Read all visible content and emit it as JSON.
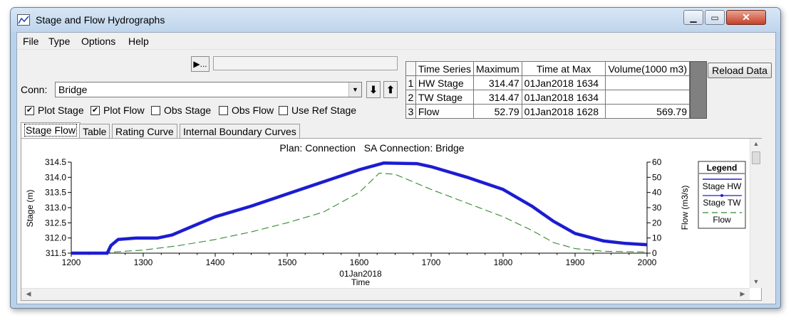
{
  "window": {
    "title": "Stage and Flow Hydrographs",
    "min_glyph": "▁",
    "max_glyph": "▭",
    "close_glyph": "✕"
  },
  "menu": [
    "File",
    "Type",
    "Options",
    "Help"
  ],
  "run": {
    "play_glyph": "▶..."
  },
  "conn": {
    "label": "Conn:",
    "value": "Bridge",
    "dropdown_glyph": "▼",
    "down_glyph": "⬇",
    "up_glyph": "⬆"
  },
  "checkboxes": [
    {
      "label": "Plot Stage",
      "checked": true
    },
    {
      "label": "Plot Flow",
      "checked": true
    },
    {
      "label": "Obs Stage",
      "checked": false
    },
    {
      "label": "Obs Flow",
      "checked": false
    },
    {
      "label": "Use Ref Stage",
      "checked": false
    }
  ],
  "table": {
    "headers": [
      "Time Series",
      "Maximum",
      "Time at Max",
      "Volume(1000 m3)"
    ],
    "rows": [
      {
        "n": "1",
        "series": "HW Stage",
        "max": "314.47",
        "time": "01Jan2018  1634",
        "volume": ""
      },
      {
        "n": "2",
        "series": "TW Stage",
        "max": "314.47",
        "time": "01Jan2018  1634",
        "volume": ""
      },
      {
        "n": "3",
        "series": "Flow",
        "max": "52.79",
        "time": "01Jan2018  1628",
        "volume": "569.79"
      }
    ]
  },
  "reload_label": "Reload Data",
  "tabs": [
    "Stage Flow",
    "Table",
    "Rating Curve",
    "Internal Boundary Curves"
  ],
  "active_tab": 0,
  "colors": {
    "stage": "#1f1fd6",
    "flow": "#2e8b2e",
    "accent": "#0000cc"
  },
  "chart_data": {
    "type": "line",
    "title": "Plan: Connection   SA Connection: Bridge",
    "xlabel_date": "01Jan2018",
    "xlabel": "Time",
    "ylabel_left": "Stage (m)",
    "ylabel_right": "Flow (m3/s)",
    "xlim": [
      1200,
      2000
    ],
    "ylim_left": [
      311.5,
      314.5
    ],
    "ylim_right": [
      0,
      60
    ],
    "x_ticks": [
      1200,
      1300,
      1400,
      1500,
      1600,
      1700,
      1800,
      1900,
      2000
    ],
    "y_left_ticks": [
      "311.5",
      "312.0",
      "312.5",
      "313.0",
      "313.5",
      "314.0",
      "314.5"
    ],
    "y_right_ticks": [
      "0",
      "10",
      "20",
      "30",
      "40",
      "50",
      "60"
    ],
    "legend": {
      "title": "Legend",
      "entries": [
        "Stage HW",
        "Stage TW",
        "Flow"
      ],
      "placement": "right"
    },
    "series": [
      {
        "name": "Stage HW",
        "axis": "left",
        "points": [
          [
            1200,
            311.5
          ],
          [
            1250,
            311.5
          ],
          [
            1255,
            311.75
          ],
          [
            1265,
            311.95
          ],
          [
            1290,
            312.0
          ],
          [
            1320,
            312.0
          ],
          [
            1340,
            312.1
          ],
          [
            1370,
            312.4
          ],
          [
            1400,
            312.7
          ],
          [
            1450,
            313.05
          ],
          [
            1500,
            313.45
          ],
          [
            1550,
            313.85
          ],
          [
            1600,
            314.25
          ],
          [
            1634,
            314.47
          ],
          [
            1680,
            314.45
          ],
          [
            1700,
            314.35
          ],
          [
            1750,
            314.0
          ],
          [
            1800,
            313.6
          ],
          [
            1840,
            313.05
          ],
          [
            1870,
            312.55
          ],
          [
            1900,
            312.15
          ],
          [
            1940,
            311.9
          ],
          [
            1970,
            311.82
          ],
          [
            2000,
            311.78
          ]
        ]
      },
      {
        "name": "Stage TW",
        "axis": "left",
        "points": [
          [
            1200,
            311.5
          ],
          [
            1250,
            311.5
          ],
          [
            1255,
            311.75
          ],
          [
            1265,
            311.95
          ],
          [
            1290,
            312.0
          ],
          [
            1320,
            312.0
          ],
          [
            1340,
            312.1
          ],
          [
            1370,
            312.4
          ],
          [
            1400,
            312.7
          ],
          [
            1450,
            313.05
          ],
          [
            1500,
            313.45
          ],
          [
            1550,
            313.85
          ],
          [
            1600,
            314.25
          ],
          [
            1634,
            314.47
          ],
          [
            1680,
            314.45
          ],
          [
            1700,
            314.35
          ],
          [
            1750,
            314.0
          ],
          [
            1800,
            313.6
          ],
          [
            1840,
            313.05
          ],
          [
            1870,
            312.55
          ],
          [
            1900,
            312.15
          ],
          [
            1940,
            311.9
          ],
          [
            1970,
            311.82
          ],
          [
            2000,
            311.78
          ]
        ]
      },
      {
        "name": "Flow",
        "axis": "right",
        "points": [
          [
            1200,
            0.2
          ],
          [
            1250,
            0.5
          ],
          [
            1300,
            2
          ],
          [
            1350,
            5
          ],
          [
            1400,
            9
          ],
          [
            1450,
            14
          ],
          [
            1500,
            20
          ],
          [
            1550,
            27
          ],
          [
            1600,
            40
          ],
          [
            1628,
            52.79
          ],
          [
            1650,
            52
          ],
          [
            1700,
            42
          ],
          [
            1750,
            33
          ],
          [
            1800,
            24
          ],
          [
            1840,
            15
          ],
          [
            1870,
            7
          ],
          [
            1900,
            3
          ],
          [
            1940,
            1.2
          ],
          [
            2000,
            0.8
          ]
        ]
      }
    ]
  }
}
